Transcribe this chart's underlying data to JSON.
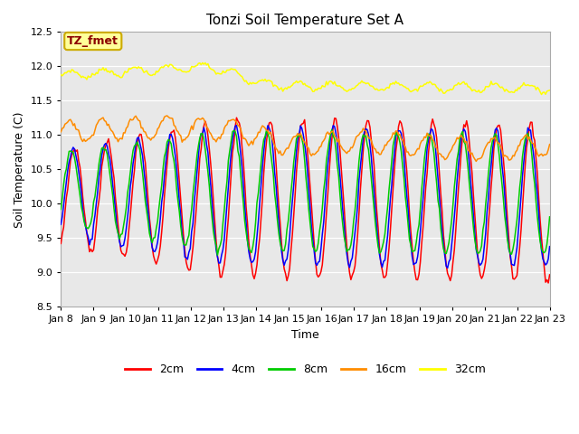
{
  "title": "Tonzi Soil Temperature Set A",
  "xlabel": "Time",
  "ylabel": "Soil Temperature (C)",
  "ylim": [
    8.5,
    12.5
  ],
  "annotation_text": "TZ_fmet",
  "annotation_color": "#8B0000",
  "annotation_bg": "#FFFF99",
  "annotation_border": "#CCAA00",
  "xtick_labels": [
    "Jan 8",
    "Jan 9",
    "Jan 10",
    "Jan 11",
    "Jan 12",
    "Jan 13",
    "Jan 14",
    "Jan 15",
    "Jan 16",
    "Jan 17",
    "Jan 18",
    "Jan 19",
    "Jan 20",
    "Jan 21",
    "Jan 22",
    "Jan 23"
  ],
  "legend_labels": [
    "2cm",
    "4cm",
    "8cm",
    "16cm",
    "32cm"
  ],
  "legend_colors": [
    "#FF0000",
    "#0000FF",
    "#00CC00",
    "#FF8C00",
    "#FFFF00"
  ],
  "background_color": "#E8E8E8",
  "plot_bg_color": "#EBEBEB"
}
